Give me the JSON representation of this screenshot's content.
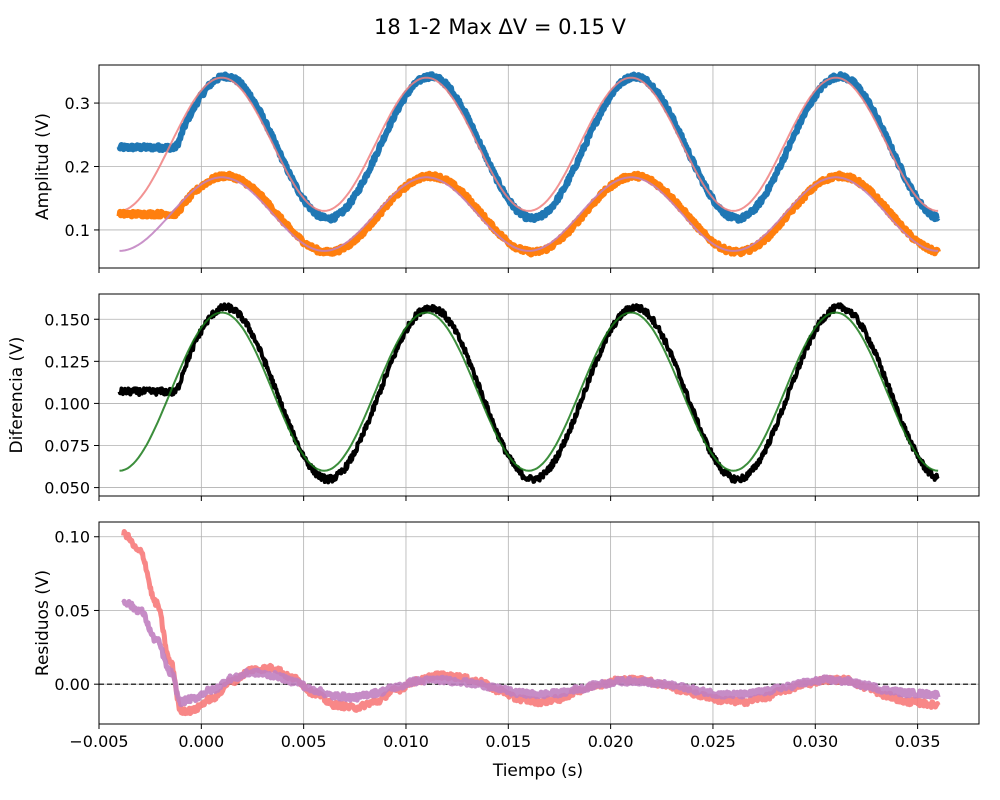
{
  "title": "18 1-2 Max ΔV = 0.15 V",
  "xlabel": "Tiempo (s)",
  "chart_data": [
    {
      "type": "line",
      "ylabel": "Amplitud (V)",
      "xlim": [
        -0.005,
        0.038
      ],
      "ylim": [
        0.04,
        0.36
      ],
      "grid": true,
      "xticks": [
        -0.005,
        0.0,
        0.005,
        0.01,
        0.015,
        0.02,
        0.025,
        0.03,
        0.035
      ],
      "yticks": [
        0.1,
        0.2,
        0.3
      ],
      "ytick_labels": [
        "0.1",
        "0.2",
        "0.3"
      ],
      "show_xtick_labels": false,
      "series": [
        {
          "role": "data",
          "color": "#1f77b4",
          "stroke_width": 6,
          "noise": 0.004,
          "model": {
            "offset": 0.23,
            "amplitude": 0.112,
            "period": 0.01,
            "peak_at": 0.0012,
            "flat_before": -0.0015,
            "flat_value": 0.23
          },
          "x_range": [
            -0.004,
            0.036
          ]
        },
        {
          "role": "fit",
          "color": "#f08080",
          "stroke_width": 2,
          "model": {
            "offset": 0.235,
            "amplitude": 0.105,
            "period": 0.01,
            "peak_at": 0.001
          },
          "x_range": [
            -0.004,
            0.036
          ]
        },
        {
          "role": "data",
          "color": "#ff7f0e",
          "stroke_width": 6,
          "noise": 0.004,
          "model": {
            "offset": 0.125,
            "amplitude": 0.06,
            "period": 0.01,
            "peak_at": 0.0012,
            "flat_before": -0.0015,
            "flat_value": 0.125
          },
          "x_range": [
            -0.004,
            0.036
          ]
        },
        {
          "role": "fit",
          "color": "#c07fc0",
          "stroke_width": 2,
          "model": {
            "offset": 0.125,
            "amplitude": 0.058,
            "period": 0.01,
            "peak_at": 0.001
          },
          "x_range": [
            -0.004,
            0.036
          ]
        }
      ]
    },
    {
      "type": "line",
      "ylabel": "Diferencia (V)",
      "xlim": [
        -0.005,
        0.038
      ],
      "ylim": [
        0.045,
        0.165
      ],
      "grid": true,
      "xticks": [
        -0.005,
        0.0,
        0.005,
        0.01,
        0.015,
        0.02,
        0.025,
        0.03,
        0.035
      ],
      "yticks": [
        0.05,
        0.075,
        0.1,
        0.125,
        0.15
      ],
      "ytick_labels": [
        "0.050",
        "0.075",
        "0.100",
        "0.125",
        "0.150"
      ],
      "show_xtick_labels": false,
      "series": [
        {
          "role": "data",
          "color": "#000000",
          "stroke_width": 4,
          "noise": 0.002,
          "model": {
            "offset": 0.106,
            "amplitude": 0.051,
            "period": 0.01,
            "peak_at": 0.0012,
            "flat_before": -0.0015,
            "flat_value": 0.107
          },
          "x_range": [
            -0.004,
            0.036
          ]
        },
        {
          "role": "fit",
          "color": "#1a7a1a",
          "stroke_width": 2,
          "model": {
            "offset": 0.107,
            "amplitude": 0.047,
            "period": 0.01,
            "peak_at": 0.001
          },
          "x_range": [
            -0.004,
            0.036
          ]
        }
      ]
    },
    {
      "type": "line",
      "ylabel": "Residuos (V)",
      "xlim": [
        -0.005,
        0.038
      ],
      "ylim": [
        -0.027,
        0.11
      ],
      "grid": true,
      "xticks": [
        -0.005,
        0.0,
        0.005,
        0.01,
        0.015,
        0.02,
        0.025,
        0.03,
        0.035
      ],
      "xtick_labels": [
        "−0.005",
        "0.000",
        "0.005",
        "0.010",
        "0.015",
        "0.020",
        "0.025",
        "0.030",
        "0.035"
      ],
      "yticks": [
        0.0,
        0.05,
        0.1
      ],
      "ytick_labels": [
        "0.00",
        "0.05",
        "0.10"
      ],
      "show_xtick_labels": true,
      "hline": {
        "y": 0.0,
        "style": "dashed",
        "color": "#000000"
      },
      "series": [
        {
          "role": "residual",
          "color": "#f77a7a",
          "stroke_width": 5,
          "noise": 0.002,
          "points": [
            [
              -0.0038,
              0.102
            ],
            [
              -0.003,
              0.09
            ],
            [
              -0.0022,
              0.055
            ],
            [
              -0.0015,
              0.015
            ],
            [
              -0.001,
              -0.018
            ],
            [
              -0.0005,
              -0.018
            ],
            [
              0.0005,
              -0.01
            ],
            [
              0.0015,
              0.002
            ],
            [
              0.0025,
              0.01
            ],
            [
              0.0035,
              0.011
            ],
            [
              0.0045,
              0.004
            ],
            [
              0.0055,
              -0.006
            ],
            [
              0.0065,
              -0.014
            ],
            [
              0.0075,
              -0.016
            ],
            [
              0.0085,
              -0.012
            ],
            [
              0.0095,
              -0.004
            ],
            [
              0.0105,
              0.002
            ],
            [
              0.0115,
              0.006
            ],
            [
              0.0125,
              0.005
            ],
            [
              0.0135,
              0.002
            ],
            [
              0.0145,
              -0.004
            ],
            [
              0.0155,
              -0.01
            ],
            [
              0.0165,
              -0.012
            ],
            [
              0.0175,
              -0.01
            ],
            [
              0.0185,
              -0.004
            ],
            [
              0.0195,
              0.0
            ],
            [
              0.0205,
              0.003
            ],
            [
              0.0215,
              0.003
            ],
            [
              0.0225,
              0.0
            ],
            [
              0.0235,
              -0.004
            ],
            [
              0.0245,
              -0.008
            ],
            [
              0.0255,
              -0.011
            ],
            [
              0.0265,
              -0.012
            ],
            [
              0.0275,
              -0.009
            ],
            [
              0.0285,
              -0.004
            ],
            [
              0.0295,
              0.0
            ],
            [
              0.0305,
              0.003
            ],
            [
              0.0315,
              0.003
            ],
            [
              0.0325,
              -0.002
            ],
            [
              0.0335,
              -0.008
            ],
            [
              0.0345,
              -0.012
            ],
            [
              0.036,
              -0.014
            ]
          ]
        },
        {
          "role": "residual",
          "color": "#c07fc0",
          "stroke_width": 5,
          "noise": 0.002,
          "points": [
            [
              -0.0038,
              0.056
            ],
            [
              -0.003,
              0.05
            ],
            [
              -0.0022,
              0.03
            ],
            [
              -0.0015,
              0.008
            ],
            [
              -0.001,
              -0.012
            ],
            [
              -0.0005,
              -0.01
            ],
            [
              0.0005,
              -0.004
            ],
            [
              0.0015,
              0.004
            ],
            [
              0.0025,
              0.008
            ],
            [
              0.0035,
              0.006
            ],
            [
              0.0045,
              0.002
            ],
            [
              0.0055,
              -0.004
            ],
            [
              0.0065,
              -0.008
            ],
            [
              0.0075,
              -0.009
            ],
            [
              0.0085,
              -0.006
            ],
            [
              0.0095,
              -0.002
            ],
            [
              0.0105,
              0.002
            ],
            [
              0.0115,
              0.003
            ],
            [
              0.0125,
              0.002
            ],
            [
              0.0135,
              0.0
            ],
            [
              0.0145,
              -0.003
            ],
            [
              0.0155,
              -0.006
            ],
            [
              0.0165,
              -0.007
            ],
            [
              0.0175,
              -0.006
            ],
            [
              0.0185,
              -0.003
            ],
            [
              0.0195,
              0.0
            ],
            [
              0.0205,
              0.002
            ],
            [
              0.0215,
              0.002
            ],
            [
              0.0225,
              0.0
            ],
            [
              0.0235,
              -0.002
            ],
            [
              0.0245,
              -0.005
            ],
            [
              0.0255,
              -0.007
            ],
            [
              0.0265,
              -0.007
            ],
            [
              0.0275,
              -0.005
            ],
            [
              0.0285,
              -0.002
            ],
            [
              0.0295,
              0.001
            ],
            [
              0.0305,
              0.003
            ],
            [
              0.0315,
              0.002
            ],
            [
              0.0325,
              -0.001
            ],
            [
              0.0335,
              -0.004
            ],
            [
              0.0345,
              -0.006
            ],
            [
              0.036,
              -0.007
            ]
          ]
        }
      ]
    }
  ]
}
